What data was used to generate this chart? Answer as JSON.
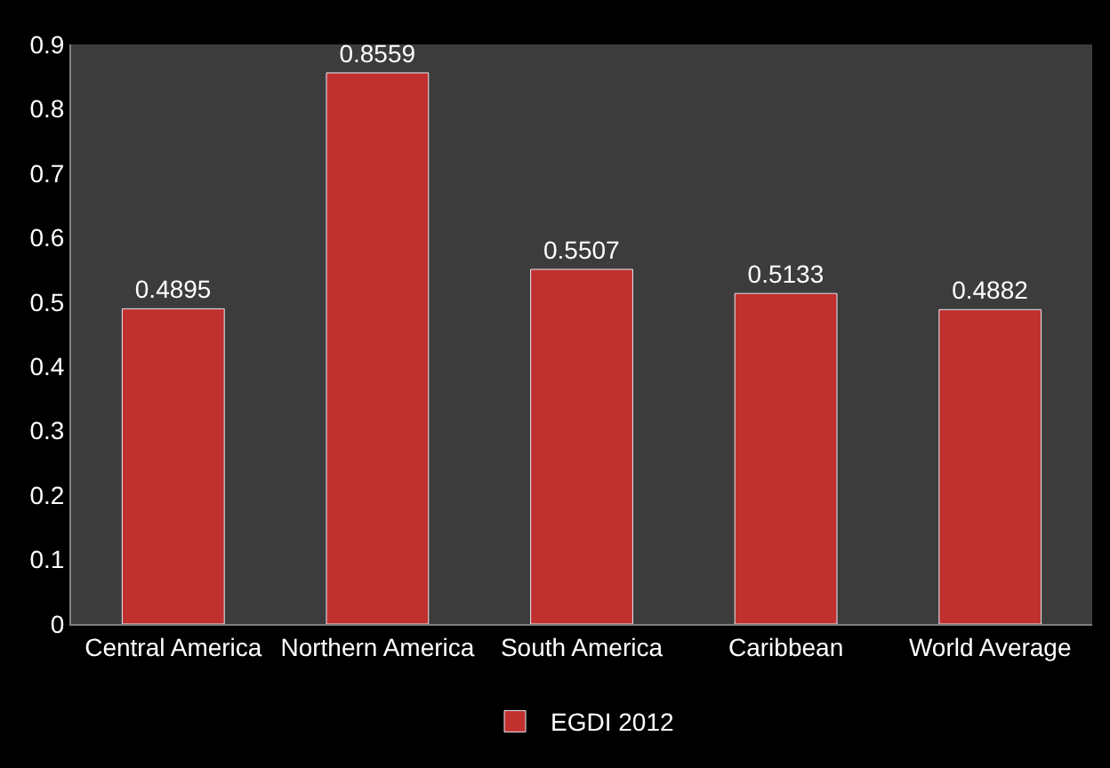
{
  "chart_data": {
    "type": "bar",
    "categories": [
      "Central America",
      "Northern America",
      "South America",
      "Caribbean",
      "World Average"
    ],
    "series": [
      {
        "name": "EGDI 2012",
        "color": "#c0302f",
        "values": [
          0.4895,
          0.8559,
          0.5507,
          0.5133,
          0.4882
        ]
      }
    ],
    "ylim": [
      0,
      0.9
    ],
    "yticks": [
      0,
      0.1,
      0.2,
      0.3,
      0.4,
      0.5,
      0.6,
      0.7,
      0.8,
      0.9
    ],
    "data_labels": true,
    "grid": false,
    "legend": "bottom"
  }
}
